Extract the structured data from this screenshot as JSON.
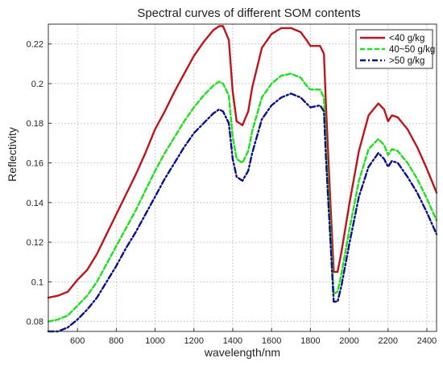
{
  "chart_data": {
    "type": "line",
    "title": "Spectral curves of different SOM contents",
    "xlabel": "wavelength/nm",
    "ylabel": "Reflectivity",
    "xlim": [
      450,
      2450
    ],
    "ylim": [
      0.075,
      0.23
    ],
    "xticks": [
      600,
      800,
      1000,
      1200,
      1400,
      1600,
      1800,
      2000,
      2200,
      2400
    ],
    "xtick_labels": [
      "600",
      "800",
      "1000",
      "1200",
      "1400",
      "1600",
      "1800",
      "2000",
      "2200",
      "2400"
    ],
    "yticks": [
      0.08,
      0.1,
      0.12,
      0.14,
      0.16,
      0.18,
      0.2,
      0.22
    ],
    "ytick_labels": [
      "0.08",
      "0.1",
      "0.12",
      "0.14",
      "0.16",
      "0.18",
      "0.2",
      "0.22"
    ],
    "grid": true,
    "legend_position": "top-right",
    "series": [
      {
        "name": "<40 g/kg",
        "color": "#c0141c",
        "style": "solid",
        "x": [
          450,
          500,
          550,
          600,
          650,
          700,
          750,
          800,
          850,
          900,
          950,
          1000,
          1050,
          1100,
          1150,
          1200,
          1250,
          1300,
          1330,
          1350,
          1380,
          1400,
          1420,
          1450,
          1480,
          1500,
          1550,
          1600,
          1650,
          1700,
          1750,
          1780,
          1800,
          1850,
          1870,
          1880,
          1900,
          1920,
          1940,
          1960,
          2000,
          2050,
          2100,
          2150,
          2180,
          2200,
          2220,
          2250,
          2300,
          2350,
          2400,
          2450
        ],
        "y": [
          0.092,
          0.093,
          0.095,
          0.101,
          0.106,
          0.114,
          0.124,
          0.134,
          0.144,
          0.154,
          0.165,
          0.177,
          0.186,
          0.196,
          0.205,
          0.214,
          0.221,
          0.227,
          0.229,
          0.229,
          0.222,
          0.196,
          0.181,
          0.179,
          0.186,
          0.198,
          0.218,
          0.225,
          0.228,
          0.228,
          0.226,
          0.222,
          0.219,
          0.219,
          0.215,
          0.19,
          0.147,
          0.105,
          0.105,
          0.115,
          0.139,
          0.166,
          0.184,
          0.19,
          0.187,
          0.181,
          0.184,
          0.183,
          0.177,
          0.168,
          0.157,
          0.145
        ]
      },
      {
        "name": "40~50 g/kg",
        "color": "#1ee01e",
        "style": "dashed",
        "x": [
          450,
          500,
          550,
          600,
          650,
          700,
          750,
          800,
          850,
          900,
          950,
          1000,
          1050,
          1100,
          1150,
          1200,
          1250,
          1300,
          1330,
          1350,
          1380,
          1400,
          1420,
          1450,
          1480,
          1500,
          1550,
          1600,
          1650,
          1700,
          1750,
          1780,
          1800,
          1850,
          1870,
          1880,
          1900,
          1920,
          1940,
          1960,
          2000,
          2050,
          2100,
          2150,
          2180,
          2200,
          2220,
          2250,
          2300,
          2350,
          2400,
          2450
        ],
        "y": [
          0.08,
          0.081,
          0.083,
          0.088,
          0.093,
          0.1,
          0.109,
          0.118,
          0.127,
          0.136,
          0.146,
          0.156,
          0.165,
          0.173,
          0.181,
          0.188,
          0.194,
          0.199,
          0.201,
          0.2,
          0.194,
          0.173,
          0.162,
          0.16,
          0.166,
          0.176,
          0.193,
          0.2,
          0.204,
          0.205,
          0.203,
          0.199,
          0.197,
          0.197,
          0.193,
          0.17,
          0.132,
          0.094,
          0.095,
          0.104,
          0.126,
          0.151,
          0.167,
          0.172,
          0.169,
          0.164,
          0.167,
          0.166,
          0.16,
          0.152,
          0.142,
          0.131
        ]
      },
      {
        "name": ">50 g/kg",
        "color": "#0a0f8c",
        "style": "dashdot",
        "x": [
          450,
          500,
          550,
          600,
          650,
          700,
          750,
          800,
          850,
          900,
          950,
          1000,
          1050,
          1100,
          1150,
          1200,
          1250,
          1300,
          1330,
          1350,
          1380,
          1400,
          1420,
          1450,
          1480,
          1500,
          1550,
          1600,
          1650,
          1700,
          1750,
          1780,
          1800,
          1850,
          1870,
          1880,
          1900,
          1920,
          1940,
          1960,
          2000,
          2050,
          2100,
          2150,
          2180,
          2200,
          2220,
          2250,
          2300,
          2350,
          2400,
          2450
        ],
        "y": [
          0.075,
          0.075,
          0.077,
          0.081,
          0.086,
          0.092,
          0.1,
          0.108,
          0.117,
          0.125,
          0.134,
          0.143,
          0.152,
          0.16,
          0.168,
          0.175,
          0.18,
          0.185,
          0.187,
          0.186,
          0.18,
          0.162,
          0.153,
          0.151,
          0.156,
          0.165,
          0.182,
          0.189,
          0.193,
          0.195,
          0.193,
          0.19,
          0.188,
          0.189,
          0.186,
          0.163,
          0.127,
          0.09,
          0.09,
          0.098,
          0.119,
          0.143,
          0.158,
          0.165,
          0.162,
          0.158,
          0.161,
          0.16,
          0.153,
          0.145,
          0.135,
          0.124
        ]
      }
    ]
  }
}
